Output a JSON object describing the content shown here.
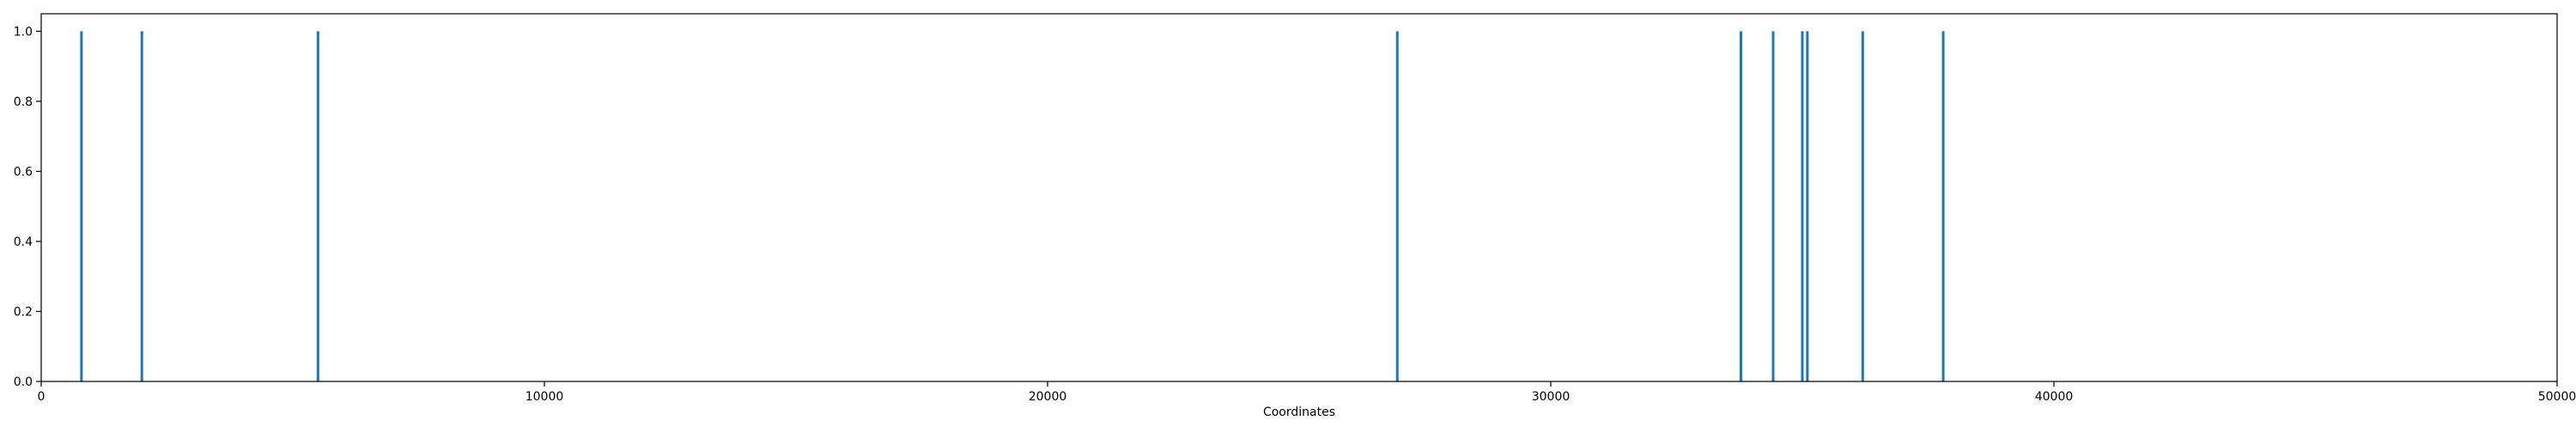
{
  "chart_data": {
    "type": "bar",
    "title": "",
    "xlabel": "Coordinates",
    "ylabel": "",
    "xlim": [
      0,
      50000
    ],
    "ylim": [
      0,
      1.05
    ],
    "grid": false,
    "x_ticks": [
      0,
      10000,
      20000,
      30000,
      40000,
      50000
    ],
    "x_tick_labels": [
      "0",
      "10000",
      "20000",
      "30000",
      "40000",
      "50000"
    ],
    "y_ticks": [
      0.0,
      0.2,
      0.4,
      0.6,
      0.8,
      1.0
    ],
    "y_tick_labels": [
      "0.0",
      "0.2",
      "0.4",
      "0.6",
      "0.8",
      "1.0"
    ],
    "x": [
      800,
      2000,
      5500,
      26950,
      33780,
      34420,
      35000,
      35100,
      36200,
      37800
    ],
    "values": [
      1,
      1,
      1,
      1,
      1,
      1,
      1,
      1,
      1,
      1
    ],
    "color": "#1f77b4"
  }
}
